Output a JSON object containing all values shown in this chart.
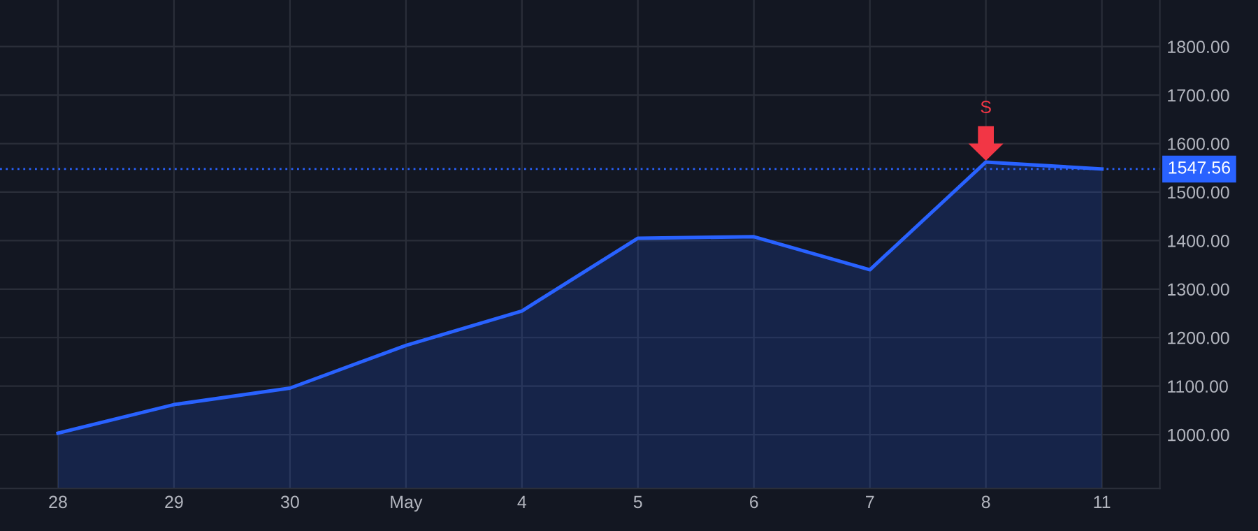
{
  "chart_data": {
    "type": "area",
    "categories": [
      "28",
      "29",
      "30",
      "May",
      "4",
      "5",
      "6",
      "7",
      "8",
      "11"
    ],
    "series": [
      {
        "color": "#2962ff",
        "values": [
          1003,
          1062,
          1096,
          1184,
          1255,
          1405,
          1408,
          1340,
          1562,
          1547.56
        ]
      }
    ],
    "ylim": [
      889,
      1896
    ],
    "yticks": [
      {
        "value": 1000,
        "label": "1000.00"
      },
      {
        "value": 1100,
        "label": "1100.00"
      },
      {
        "value": 1200,
        "label": "1200.00"
      },
      {
        "value": 1300,
        "label": "1300.00"
      },
      {
        "value": 1400,
        "label": "1400.00"
      },
      {
        "value": 1500,
        "label": "1500.00"
      },
      {
        "value": 1600,
        "label": "1600.00"
      },
      {
        "value": 1700,
        "label": "1700.00"
      },
      {
        "value": 1800,
        "label": "1800.00"
      }
    ],
    "ref_lines": [
      {
        "axis": "y",
        "value": 1547.56,
        "label": "1547.56",
        "color": "#2962ff",
        "line_style": "dotted"
      }
    ],
    "annotations": [
      "S"
    ],
    "grid": true
  }
}
